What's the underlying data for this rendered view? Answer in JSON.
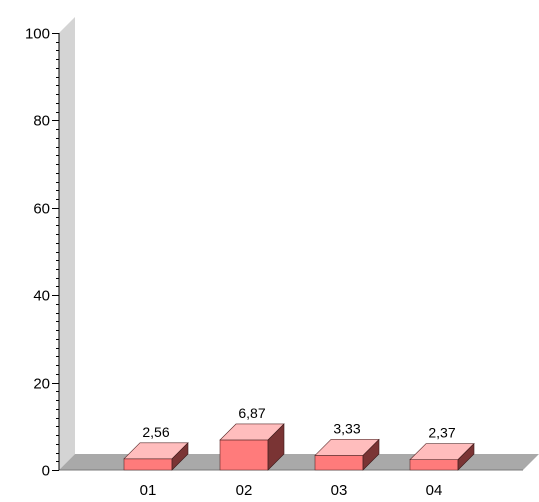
{
  "chart_data": {
    "type": "bar",
    "categories": [
      "01",
      "02",
      "03",
      "04"
    ],
    "values": [
      2.56,
      6.87,
      3.33,
      2.37
    ],
    "data_labels": [
      "2,56",
      "6,87",
      "3,33",
      "2,37"
    ],
    "title": "",
    "xlabel": "",
    "ylabel": "",
    "ylim": [
      0,
      100
    ],
    "yticks": [
      0,
      20,
      40,
      60,
      80,
      100
    ],
    "ytick_labels": [
      "0",
      "20",
      "40",
      "60",
      "80",
      "100"
    ],
    "minor_tick_step": 2,
    "grid": false,
    "three_d": true,
    "colors": {
      "bar_front": "#ff7b7b",
      "bar_top": "#ffbdbd",
      "bar_side": "#7a3434",
      "wall": "#d4d4d4",
      "floor": "#a9a9a9",
      "floor_edge": "#7a7a7a",
      "axis": "#000000"
    }
  }
}
